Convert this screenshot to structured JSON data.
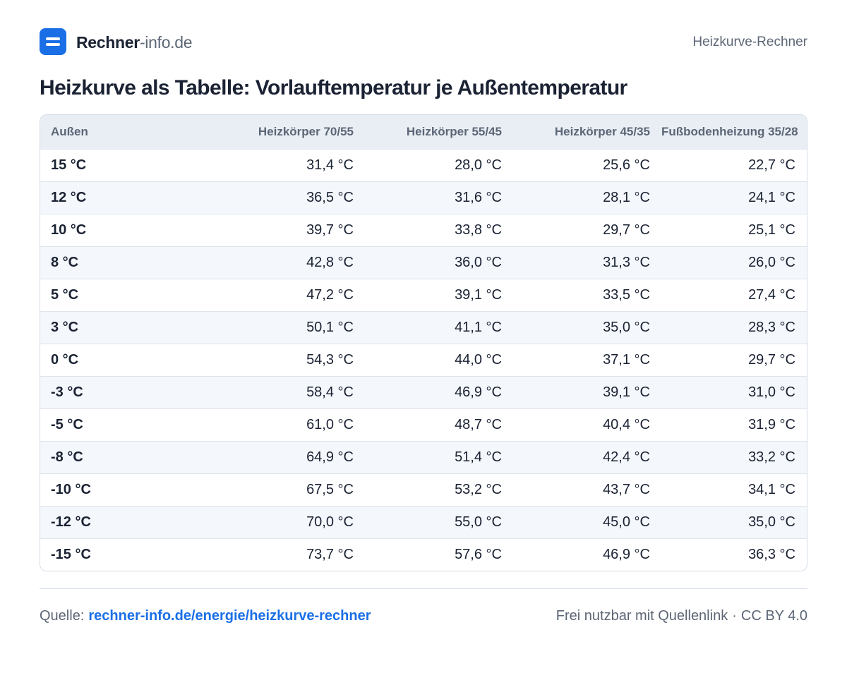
{
  "header": {
    "logo_strong": "Rechner",
    "logo_light": "-info.de",
    "right_label": "Heizkurve-Rechner"
  },
  "title": "Heizkurve als Tabelle: Vorlauftemperatur je Außentemperatur",
  "table": {
    "columns": [
      "Außen",
      "Heizkörper 70/55",
      "Heizkörper 55/45",
      "Heizkörper 45/35",
      "Fußbodenheizung 35/28"
    ],
    "rows": [
      [
        "15 °C",
        "31,4 °C",
        "28,0 °C",
        "25,6 °C",
        "22,7 °C"
      ],
      [
        "12 °C",
        "36,5 °C",
        "31,6 °C",
        "28,1 °C",
        "24,1 °C"
      ],
      [
        "10 °C",
        "39,7 °C",
        "33,8 °C",
        "29,7 °C",
        "25,1 °C"
      ],
      [
        "8 °C",
        "42,8 °C",
        "36,0 °C",
        "31,3 °C",
        "26,0 °C"
      ],
      [
        "5 °C",
        "47,2 °C",
        "39,1 °C",
        "33,5 °C",
        "27,4 °C"
      ],
      [
        "3 °C",
        "50,1 °C",
        "41,1 °C",
        "35,0 °C",
        "28,3 °C"
      ],
      [
        "0 °C",
        "54,3 °C",
        "44,0 °C",
        "37,1 °C",
        "29,7 °C"
      ],
      [
        "-3 °C",
        "58,4 °C",
        "46,9 °C",
        "39,1 °C",
        "31,0 °C"
      ],
      [
        "-5 °C",
        "61,0 °C",
        "48,7 °C",
        "40,4 °C",
        "31,9 °C"
      ],
      [
        "-8 °C",
        "64,9 °C",
        "51,4 °C",
        "42,4 °C",
        "33,2 °C"
      ],
      [
        "-10 °C",
        "67,5 °C",
        "53,2 °C",
        "43,7 °C",
        "34,1 °C"
      ],
      [
        "-12 °C",
        "70,0 °C",
        "55,0 °C",
        "45,0 °C",
        "35,0 °C"
      ],
      [
        "-15 °C",
        "73,7 °C",
        "57,6 °C",
        "46,9 °C",
        "36,3 °C"
      ]
    ]
  },
  "footer": {
    "source_label": "Quelle:",
    "source_link": "rechner-info.de/energie/heizkurve-rechner",
    "license_text": "Frei nutzbar mit Quellenlink",
    "separator": "·",
    "license": "CC BY 4.0"
  },
  "colors": {
    "brand": "#1a6fe6",
    "text": "#1a2233",
    "muted": "#5c6675",
    "header_bg": "#e9eef5",
    "alt_row_bg": "#f4f7fb"
  }
}
